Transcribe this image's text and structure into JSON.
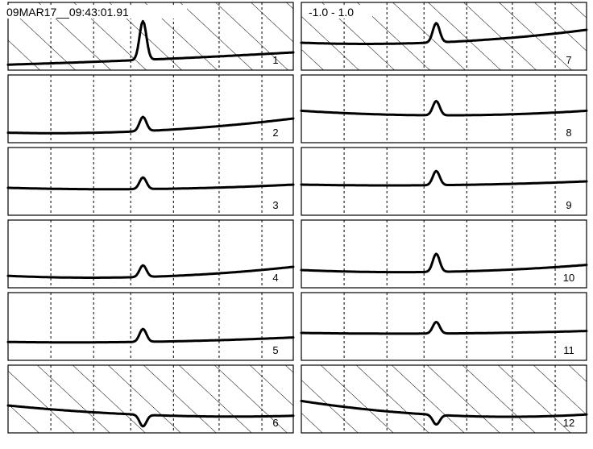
{
  "header": {
    "timestamp": "09MAR17__09:43:01.91",
    "range": "-1.0 - 1.0"
  },
  "colors": {
    "trace": "#000000",
    "frame": "#000000",
    "grid": "#000000",
    "background": "#ffffff"
  },
  "chart_data": {
    "type": "line",
    "layout": "small multiples, 6 rows x 2 columns",
    "grid": "dashed vertical lines",
    "hatched_panels": [
      "1",
      "6",
      "7",
      "12"
    ],
    "panels": [
      {
        "label": "1",
        "baseline": [
          0.06,
          0.13,
          0.25
        ],
        "rise": 0.8,
        "bump": 0.6
      },
      {
        "label": "2",
        "baseline": [
          0.13,
          0.15,
          0.35
        ],
        "rise": 0.6,
        "bump": 0.22
      },
      {
        "label": "3",
        "baseline": [
          0.4,
          0.38,
          0.45
        ],
        "rise": 0.5,
        "bump": 0.18
      },
      {
        "label": "4",
        "baseline": [
          0.16,
          0.14,
          0.3
        ],
        "rise": 0.58,
        "bump": 0.18
      },
      {
        "label": "5",
        "baseline": [
          0.26,
          0.26,
          0.33
        ],
        "rise": 0.5,
        "bump": 0.2
      },
      {
        "label": "6",
        "baseline": [
          0.4,
          0.26,
          0.24
        ],
        "rise": 0.3,
        "bump": -0.18
      },
      {
        "label": "7",
        "baseline": [
          0.4,
          0.4,
          0.6
        ],
        "rise": 0.45,
        "bump": 0.3
      },
      {
        "label": "8",
        "baseline": [
          0.47,
          0.4,
          0.47
        ],
        "rise": 0.5,
        "bump": 0.22
      },
      {
        "label": "9",
        "baseline": [
          0.45,
          0.44,
          0.5
        ],
        "rise": 0.45,
        "bump": 0.22
      },
      {
        "label": "10",
        "baseline": [
          0.25,
          0.22,
          0.33
        ],
        "rise": 0.52,
        "bump": 0.28
      },
      {
        "label": "11",
        "baseline": [
          0.4,
          0.39,
          0.43
        ],
        "rise": 0.43,
        "bump": 0.18
      },
      {
        "label": "12",
        "baseline": [
          0.47,
          0.26,
          0.26
        ],
        "rise": 0.3,
        "bump": -0.15
      }
    ]
  }
}
